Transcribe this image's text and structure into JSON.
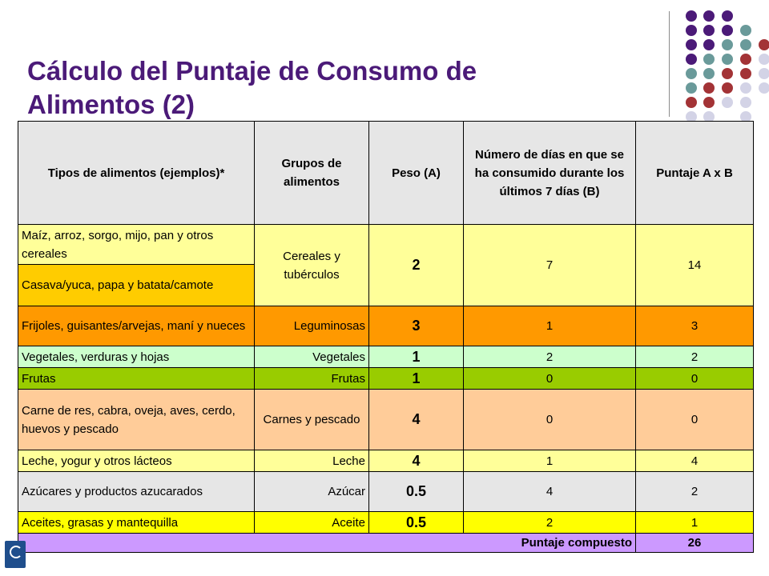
{
  "title": "Cálculo del Puntaje de Consumo de Alimentos (2)",
  "colors": {
    "dot_purple": "#4b1a78",
    "dot_teal": "#6a9a9a",
    "dot_red": "#a33336",
    "dot_lav": "#d3d3e6"
  },
  "table": {
    "headers": {
      "tipos": "Tipos de alimentos (ejemplos)*",
      "grupos": "Grupos de alimentos",
      "peso": "Peso (A)",
      "dias": "Número de días en que se ha consumido durante los últimos 7 días (B)",
      "puntaje": "Puntaje A x B"
    },
    "rows": {
      "cereales_a": "Maíz, arroz, sorgo, mijo, pan y otros cereales",
      "cereales_b": "Casava/yuca, papa y batata/camote",
      "cereales_grupo": "Cereales y tubérculos",
      "cereales_peso": "2",
      "cereales_dias": "7",
      "cereales_puntaje": "14",
      "leg_tipo": "Frijoles, guisantes/arvejas, maní y nueces",
      "leg_grupo": "Leguminosas",
      "leg_peso": "3",
      "leg_dias": "1",
      "leg_puntaje": "3",
      "veg_tipo": "Vegetales, verduras y hojas",
      "veg_grupo": "Vegetales",
      "veg_peso": "1",
      "veg_dias": "2",
      "veg_puntaje": "2",
      "fru_tipo": "Frutas",
      "fru_grupo": "Frutas",
      "fru_peso": "1",
      "fru_dias": "0",
      "fru_puntaje": "0",
      "car_tipo": "Carne de res, cabra, oveja, aves, cerdo, huevos y pescado",
      "car_grupo": "Carnes y pescado",
      "car_peso": "4",
      "car_dias": "0",
      "car_puntaje": "0",
      "lec_tipo": "Leche, yogur y otros lácteos",
      "lec_grupo": "Leche",
      "lec_peso": "4",
      "lec_dias": "1",
      "lec_puntaje": "4",
      "azu_tipo": "Azúcares y productos azucarados",
      "azu_grupo": "Azúcar",
      "azu_peso": "0.5",
      "azu_dias": "4",
      "azu_puntaje": "2",
      "ace_tipo": "Aceites, grasas y mantequilla",
      "ace_grupo": "Aceite",
      "ace_peso": "0.5",
      "ace_dias": "2",
      "ace_puntaje": "1"
    },
    "total_label": "Puntaje compuesto",
    "total_value": "26"
  }
}
